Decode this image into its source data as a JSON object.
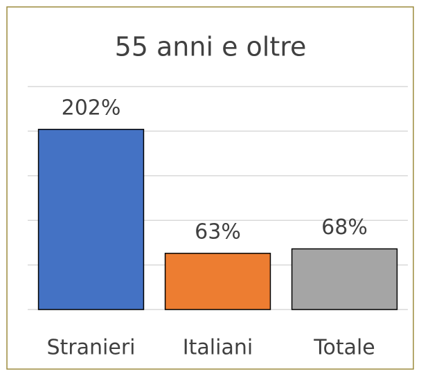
{
  "chart_data": {
    "type": "bar",
    "title": "55 anni e oltre",
    "categories": [
      "Stranieri",
      "Italiani",
      "Totale"
    ],
    "values": [
      202,
      63,
      68
    ],
    "value_labels": [
      "202%",
      "63%",
      "68%"
    ],
    "colors": [
      "#4472c4",
      "#ed7d31",
      "#a5a5a5"
    ],
    "ylim": [
      0,
      250
    ],
    "yticks": [
      0,
      50,
      100,
      150,
      200,
      250
    ],
    "grid": true
  }
}
